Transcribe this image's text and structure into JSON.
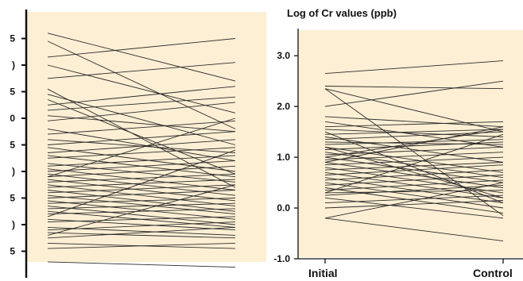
{
  "colors": {
    "panel_bg": "#fcefd4",
    "line": "#2b2b2b",
    "axis": "#111111",
    "page_bg": "#ffffff"
  },
  "chart_data": [
    {
      "type": "line",
      "ylim": [
        0,
        10
      ],
      "y_ticks": [
        1,
        2,
        3,
        4,
        5,
        6,
        7,
        8,
        9
      ],
      "y_tick_labels": [
        "5",
        ")",
        "5",
        ")",
        "5",
        "0",
        "5",
        ")",
        "5"
      ],
      "series": [
        {
          "values": [
            9.2,
            7.4
          ]
        },
        {
          "values": [
            8.3,
            9.0
          ]
        },
        {
          "values": [
            7.5,
            8.1
          ]
        },
        {
          "values": [
            6.9,
            5.0
          ]
        },
        {
          "values": [
            6.5,
            7.2
          ]
        },
        {
          "values": [
            6.3,
            6.8
          ]
        },
        {
          "values": [
            6.1,
            5.5
          ]
        },
        {
          "values": [
            5.9,
            6.6
          ]
        },
        {
          "values": [
            5.6,
            4.4
          ]
        },
        {
          "values": [
            5.4,
            5.9
          ]
        },
        {
          "values": [
            5.2,
            4.7
          ]
        },
        {
          "values": [
            5.0,
            5.5
          ]
        },
        {
          "values": [
            4.9,
            4.0
          ]
        },
        {
          "values": [
            4.7,
            5.2
          ]
        },
        {
          "values": [
            4.6,
            3.8
          ]
        },
        {
          "values": [
            4.5,
            4.9
          ]
        },
        {
          "values": [
            4.3,
            3.6
          ]
        },
        {
          "values": [
            4.2,
            4.6
          ]
        },
        {
          "values": [
            4.1,
            3.3
          ]
        },
        {
          "values": [
            4.0,
            4.4
          ]
        },
        {
          "values": [
            3.9,
            3.1
          ]
        },
        {
          "values": [
            3.8,
            4.2
          ]
        },
        {
          "values": [
            3.7,
            2.9
          ]
        },
        {
          "values": [
            3.6,
            3.9
          ]
        },
        {
          "values": [
            3.5,
            2.7
          ]
        },
        {
          "values": [
            3.4,
            3.7
          ]
        },
        {
          "values": [
            3.3,
            2.5
          ]
        },
        {
          "values": [
            3.2,
            3.5
          ]
        },
        {
          "values": [
            3.1,
            2.4
          ]
        },
        {
          "values": [
            3.0,
            3.3
          ]
        },
        {
          "values": [
            2.9,
            2.2
          ]
        },
        {
          "values": [
            2.8,
            3.0
          ]
        },
        {
          "values": [
            2.7,
            2.0
          ]
        },
        {
          "values": [
            2.6,
            2.8
          ]
        },
        {
          "values": [
            2.5,
            1.9
          ]
        },
        {
          "values": [
            2.4,
            2.6
          ]
        },
        {
          "values": [
            2.2,
            1.8
          ]
        },
        {
          "values": [
            2.1,
            2.3
          ]
        },
        {
          "values": [
            1.9,
            1.6
          ]
        },
        {
          "values": [
            1.8,
            2.1
          ]
        },
        {
          "values": [
            1.7,
            1.5
          ]
        },
        {
          "values": [
            1.5,
            1.9
          ]
        },
        {
          "values": [
            1.3,
            1.1
          ]
        },
        {
          "values": [
            1.1,
            1.3
          ]
        },
        {
          "values": [
            0.6,
            0.4
          ]
        },
        {
          "values": [
            8.9,
            5.6
          ]
        },
        {
          "values": [
            8.0,
            6.2
          ]
        },
        {
          "values": [
            7.1,
            3.4
          ]
        },
        {
          "values": [
            6.7,
            3.9
          ]
        },
        {
          "values": [
            2.3,
            4.8
          ]
        },
        {
          "values": [
            1.6,
            3.5
          ]
        },
        {
          "values": [
            3.8,
            6.0
          ]
        }
      ]
    },
    {
      "type": "line",
      "title": "Log of Cr values (ppb)",
      "categories": [
        "Initial",
        "Control"
      ],
      "ylim": [
        -1.0,
        3.55
      ],
      "y_ticks": [
        -1.0,
        0.0,
        1.0,
        2.0,
        3.0
      ],
      "y_tick_labels": [
        "-1.0",
        "0.0",
        "1.0",
        "2.0",
        "3.0"
      ],
      "series": [
        {
          "values": [
            2.65,
            2.9
          ]
        },
        {
          "values": [
            2.4,
            2.35
          ]
        },
        {
          "values": [
            2.35,
            1.5
          ]
        },
        {
          "values": [
            2.0,
            2.5
          ]
        },
        {
          "values": [
            1.8,
            1.6
          ]
        },
        {
          "values": [
            1.6,
            1.7
          ]
        },
        {
          "values": [
            1.55,
            1.4
          ]
        },
        {
          "values": [
            1.45,
            1.55
          ]
        },
        {
          "values": [
            1.4,
            0.9
          ]
        },
        {
          "values": [
            1.35,
            1.5
          ]
        },
        {
          "values": [
            1.3,
            1.25
          ]
        },
        {
          "values": [
            1.25,
            1.35
          ]
        },
        {
          "values": [
            1.2,
            0.7
          ]
        },
        {
          "values": [
            1.15,
            1.3
          ]
        },
        {
          "values": [
            1.1,
            0.6
          ]
        },
        {
          "values": [
            1.05,
            1.2
          ]
        },
        {
          "values": [
            1.0,
            0.5
          ]
        },
        {
          "values": [
            0.95,
            1.1
          ]
        },
        {
          "values": [
            0.9,
            0.4
          ]
        },
        {
          "values": [
            0.85,
            1.0
          ]
        },
        {
          "values": [
            0.8,
            0.3
          ]
        },
        {
          "values": [
            0.75,
            0.9
          ]
        },
        {
          "values": [
            0.7,
            0.2
          ]
        },
        {
          "values": [
            0.65,
            0.85
          ]
        },
        {
          "values": [
            0.6,
            0.1
          ]
        },
        {
          "values": [
            0.55,
            0.75
          ]
        },
        {
          "values": [
            0.5,
            0.0
          ]
        },
        {
          "values": [
            0.45,
            0.65
          ]
        },
        {
          "values": [
            0.4,
            -0.1
          ]
        },
        {
          "values": [
            0.35,
            0.55
          ]
        },
        {
          "values": [
            0.3,
            0.35
          ]
        },
        {
          "values": [
            0.25,
            0.45
          ]
        },
        {
          "values": [
            0.2,
            -0.2
          ]
        },
        {
          "values": [
            0.1,
            0.25
          ]
        },
        {
          "values": [
            0.0,
            0.15
          ]
        },
        {
          "values": [
            -0.2,
            -0.65
          ]
        },
        {
          "values": [
            -0.2,
            0.5
          ]
        },
        {
          "values": [
            1.5,
            0.1
          ]
        },
        {
          "values": [
            1.7,
            1.2
          ]
        },
        {
          "values": [
            0.3,
            1.45
          ]
        },
        {
          "values": [
            1.2,
            0.2
          ]
        },
        {
          "values": [
            0.9,
            1.6
          ]
        },
        {
          "values": [
            2.35,
            -0.15
          ]
        },
        {
          "values": [
            1.0,
            1.55
          ]
        }
      ]
    }
  ]
}
